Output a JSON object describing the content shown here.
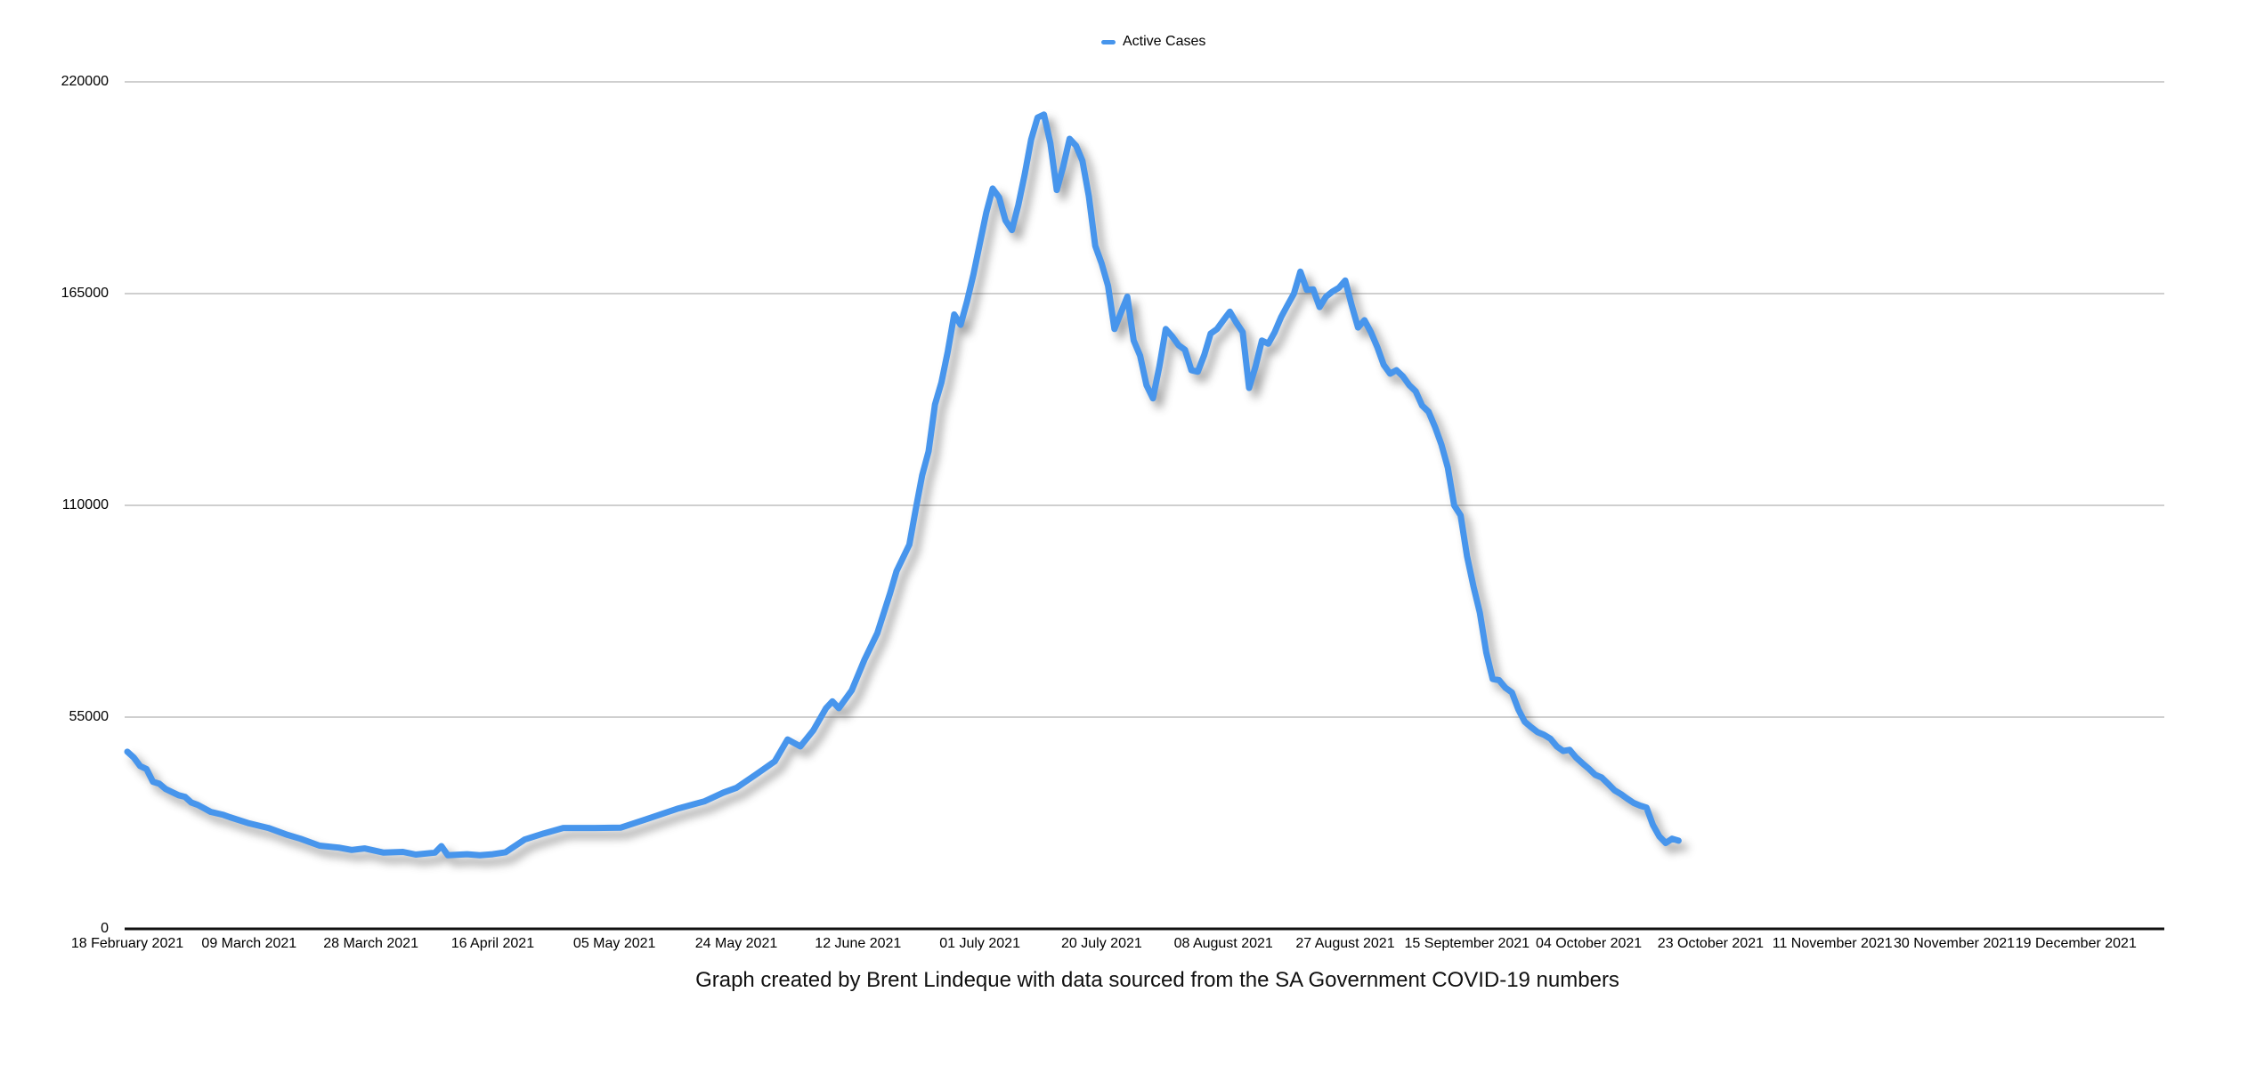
{
  "page": {
    "background_color": "#ffffff"
  },
  "legend": {
    "label": "Active Cases",
    "marker_color": "#4795EC"
  },
  "caption": "Graph created by Brent Lindeque with data sourced from the SA Government COVID-19 numbers",
  "chart_data": {
    "type": "line",
    "title": "",
    "legend_position": "top-center",
    "grid": "horizontal",
    "x_axis": {
      "unit": "date",
      "tick_interval_days": 19,
      "tick_labels": [
        "18 February 2021",
        "09 March 2021",
        "28 March 2021",
        "16 April 2021",
        "05 May 2021",
        "24 May 2021",
        "12 June 2021",
        "01 July 2021",
        "20 July 2021",
        "08 August 2021",
        "27 August 2021",
        "15 September 2021",
        "04 October 2021",
        "23 October 2021",
        "11 November 2021",
        "30 November 2021",
        "19 December 2021"
      ]
    },
    "y_axis": {
      "ticks": [
        0,
        55000,
        110000,
        165000,
        220000
      ],
      "tick_labels": [
        "0",
        "55000",
        "110000",
        "165000",
        "220000"
      ],
      "range": [
        0,
        220000
      ]
    },
    "style": {
      "line_color": "#4795EC",
      "grid_color": "#BFBFBF",
      "axis_color": "#111111",
      "label_color": "#000000",
      "line_width": 7
    },
    "series": [
      {
        "name": "Active Cases",
        "color": "#4795EC",
        "x_unit": "days_since_18_february_2021",
        "points": [
          [
            0,
            46000
          ],
          [
            1,
            44500
          ],
          [
            2,
            42300
          ],
          [
            3,
            41500
          ],
          [
            4,
            38200
          ],
          [
            5,
            37700
          ],
          [
            6,
            36300
          ],
          [
            7,
            35500
          ],
          [
            8,
            34700
          ],
          [
            9,
            34300
          ],
          [
            10,
            32800
          ],
          [
            11,
            32200
          ],
          [
            12,
            31300
          ],
          [
            13,
            30400
          ],
          [
            15,
            29600
          ],
          [
            16,
            29000
          ],
          [
            19,
            27400
          ],
          [
            22,
            26200
          ],
          [
            25,
            24400
          ],
          [
            27,
            23400
          ],
          [
            30,
            21600
          ],
          [
            33,
            21100
          ],
          [
            35,
            20500
          ],
          [
            37,
            20900
          ],
          [
            40,
            19800
          ],
          [
            43,
            20000
          ],
          [
            45,
            19300
          ],
          [
            48,
            19800
          ],
          [
            49,
            21500
          ],
          [
            50,
            19100
          ],
          [
            53,
            19400
          ],
          [
            55,
            19100
          ],
          [
            57,
            19400
          ],
          [
            59,
            19900
          ],
          [
            62,
            23200
          ],
          [
            65,
            24800
          ],
          [
            68,
            26200
          ],
          [
            73,
            26200
          ],
          [
            77,
            26300
          ],
          [
            81,
            28500
          ],
          [
            86,
            31300
          ],
          [
            90,
            33100
          ],
          [
            93,
            35400
          ],
          [
            95,
            36600
          ],
          [
            98,
            40000
          ],
          [
            101,
            43500
          ],
          [
            103,
            49200
          ],
          [
            105,
            47400
          ],
          [
            107,
            51500
          ],
          [
            109,
            57300
          ],
          [
            110,
            59100
          ],
          [
            111,
            57300
          ],
          [
            113,
            61900
          ],
          [
            115,
            69900
          ],
          [
            117,
            76800
          ],
          [
            119,
            87200
          ],
          [
            120,
            92900
          ],
          [
            122,
            99800
          ],
          [
            123,
            109000
          ],
          [
            124,
            117800
          ],
          [
            125,
            124000
          ],
          [
            126,
            136200
          ],
          [
            127,
            141900
          ],
          [
            128,
            150000
          ],
          [
            129,
            159600
          ],
          [
            130,
            156900
          ],
          [
            131,
            163000
          ],
          [
            132,
            170000
          ],
          [
            133,
            178000
          ],
          [
            134,
            186000
          ],
          [
            135,
            192300
          ],
          [
            136,
            190000
          ],
          [
            137,
            184000
          ],
          [
            138,
            181500
          ],
          [
            139,
            188000
          ],
          [
            140,
            196000
          ],
          [
            141,
            205000
          ],
          [
            142,
            210700
          ],
          [
            143,
            211500
          ],
          [
            144,
            204100
          ],
          [
            145,
            191900
          ],
          [
            146,
            198000
          ],
          [
            147,
            205200
          ],
          [
            148,
            203400
          ],
          [
            149,
            199500
          ],
          [
            150,
            190300
          ],
          [
            151,
            177400
          ],
          [
            152,
            172800
          ],
          [
            153,
            167000
          ],
          [
            154,
            155800
          ],
          [
            155,
            160000
          ],
          [
            156,
            164200
          ],
          [
            157,
            152800
          ],
          [
            158,
            148900
          ],
          [
            159,
            141200
          ],
          [
            160,
            137800
          ],
          [
            161,
            146000
          ],
          [
            162,
            155800
          ],
          [
            163,
            153900
          ],
          [
            164,
            151600
          ],
          [
            165,
            150400
          ],
          [
            166,
            145100
          ],
          [
            167,
            144700
          ],
          [
            168,
            149000
          ],
          [
            169,
            154600
          ],
          [
            170,
            155800
          ],
          [
            171,
            158100
          ],
          [
            172,
            160300
          ],
          [
            173,
            157500
          ],
          [
            174,
            155000
          ],
          [
            175,
            140500
          ],
          [
            176,
            146000
          ],
          [
            177,
            152800
          ],
          [
            178,
            152000
          ],
          [
            179,
            155000
          ],
          [
            180,
            158900
          ],
          [
            181,
            162000
          ],
          [
            182,
            165000
          ],
          [
            183,
            170700
          ],
          [
            184,
            166000
          ],
          [
            185,
            166100
          ],
          [
            186,
            161500
          ],
          [
            187,
            164200
          ],
          [
            188,
            165500
          ],
          [
            189,
            166500
          ],
          [
            190,
            168400
          ],
          [
            191,
            162000
          ],
          [
            192,
            156200
          ],
          [
            193,
            158100
          ],
          [
            194,
            155000
          ],
          [
            195,
            151100
          ],
          [
            196,
            146500
          ],
          [
            197,
            144200
          ],
          [
            198,
            145100
          ],
          [
            199,
            143500
          ],
          [
            200,
            141200
          ],
          [
            201,
            139600
          ],
          [
            202,
            135900
          ],
          [
            203,
            134300
          ],
          [
            204,
            130400
          ],
          [
            205,
            125800
          ],
          [
            206,
            119800
          ],
          [
            207,
            110000
          ],
          [
            208,
            107400
          ],
          [
            209,
            96800
          ],
          [
            210,
            89000
          ],
          [
            211,
            82100
          ],
          [
            212,
            71800
          ],
          [
            213,
            64900
          ],
          [
            214,
            64600
          ],
          [
            215,
            62600
          ],
          [
            216,
            61400
          ],
          [
            217,
            57000
          ],
          [
            218,
            53800
          ],
          [
            219,
            52400
          ],
          [
            220,
            51100
          ],
          [
            221,
            50400
          ],
          [
            222,
            49400
          ],
          [
            223,
            47400
          ],
          [
            224,
            46200
          ],
          [
            225,
            46500
          ],
          [
            226,
            44500
          ],
          [
            227,
            43000
          ],
          [
            228,
            41600
          ],
          [
            229,
            40000
          ],
          [
            230,
            39300
          ],
          [
            231,
            37700
          ],
          [
            232,
            36000
          ],
          [
            233,
            35000
          ],
          [
            234,
            33800
          ],
          [
            235,
            32700
          ],
          [
            236,
            32000
          ],
          [
            237,
            31500
          ],
          [
            238,
            27000
          ],
          [
            239,
            24000
          ],
          [
            240,
            22300
          ],
          [
            241,
            23400
          ],
          [
            242,
            22900
          ]
        ]
      }
    ]
  }
}
